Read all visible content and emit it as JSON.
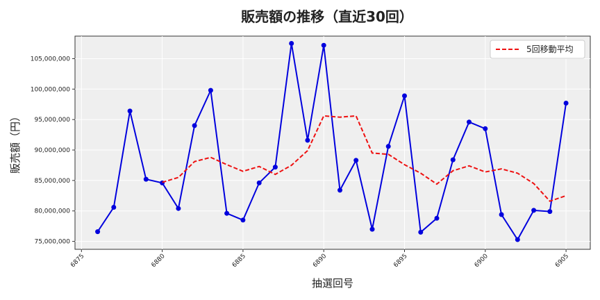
{
  "chart_data": {
    "type": "line",
    "title": "販売額の推移（直近30回）",
    "xlabel": "抽選回号",
    "ylabel": "販売額（円）",
    "x": [
      6876,
      6877,
      6878,
      6879,
      6880,
      6881,
      6882,
      6883,
      6884,
      6885,
      6886,
      6887,
      6888,
      6889,
      6890,
      6891,
      6892,
      6893,
      6894,
      6895,
      6896,
      6897,
      6898,
      6899,
      6900,
      6901,
      6902,
      6903,
      6904,
      6905
    ],
    "series": [
      {
        "name": "",
        "color": "#0000dd",
        "style": "solid",
        "markers": true,
        "values": [
          76600000,
          80600000,
          96400000,
          85200000,
          84600000,
          80400000,
          94000000,
          99800000,
          79600000,
          78500000,
          84600000,
          87200000,
          107500000,
          91600000,
          107200000,
          83400000,
          88300000,
          77000000,
          90600000,
          98900000,
          76500000,
          78800000,
          88400000,
          94600000,
          93500000,
          79400000,
          75300000,
          80100000,
          79900000,
          97700000
        ]
      },
      {
        "name": "5回移動平均",
        "color": "#ee1111",
        "style": "dashed",
        "markers": false,
        "values": [
          null,
          null,
          null,
          null,
          84700000,
          85500000,
          88100000,
          88800000,
          87600000,
          86500000,
          87300000,
          86000000,
          87500000,
          89900000,
          95600000,
          95400000,
          95600000,
          89500000,
          89300000,
          87600000,
          86200000,
          84400000,
          86600000,
          87400000,
          86400000,
          86900000,
          86200000,
          84500000,
          81600000,
          82500000
        ]
      }
    ],
    "xticks": [
      6875,
      6880,
      6885,
      6890,
      6895,
      6900,
      6905
    ],
    "xtick_labels": [
      "6875",
      "6880",
      "6885",
      "6890",
      "6895",
      "6900",
      "6905"
    ],
    "yticks": [
      75000000,
      80000000,
      85000000,
      90000000,
      95000000,
      100000000,
      105000000
    ],
    "ytick_labels": [
      "75,000,000",
      "80,000,000",
      "85,000,000",
      "90,000,000",
      "95,000,000",
      "100,000,000",
      "105,000,000"
    ],
    "xlim": [
      6874.6,
      6906.5
    ],
    "ylim": [
      73700000,
      108700000
    ],
    "grid": true,
    "legend": {
      "position": "top-right",
      "entries": [
        "5回移動平均"
      ]
    },
    "background_color": "#efefef"
  }
}
